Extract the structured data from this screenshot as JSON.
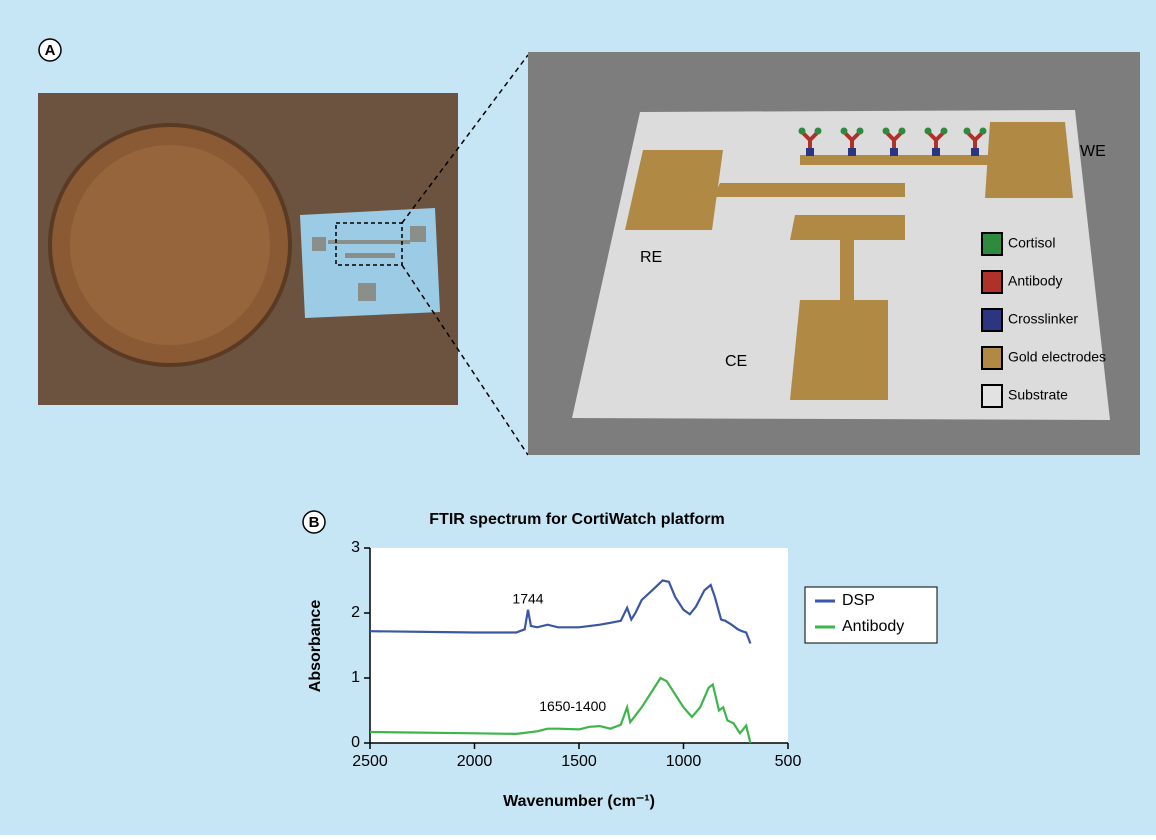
{
  "panels": {
    "a": "A",
    "b": "B"
  },
  "schematic": {
    "we": "WE",
    "re": "RE",
    "ce": "CE",
    "legend": [
      {
        "label": "Cortisol",
        "color": "#2e8b3e"
      },
      {
        "label": "Antibody",
        "color": "#b0302a"
      },
      {
        "label": "Crosslinker",
        "color": "#2b3580"
      },
      {
        "label": "Gold electrodes",
        "color": "#b08a45"
      },
      {
        "label": "Substrate",
        "color": "#e2e2e2"
      }
    ]
  },
  "chart_data": {
    "type": "line",
    "title": "FTIR spectrum for CortiWatch platform",
    "x_label": "Wavenumber (cm⁻¹)",
    "y_label": "Absorbance",
    "xlim": [
      2500,
      500
    ],
    "xticks": [
      2500,
      2000,
      1500,
      1000,
      500
    ],
    "ylim": [
      0,
      3
    ],
    "yticks": [
      0,
      1,
      2,
      3
    ],
    "annotations": [
      {
        "text": "1744",
        "x": 1744,
        "y": 2.2
      },
      {
        "text": "1650-1400",
        "x": 1530,
        "y": 0.55
      }
    ],
    "series": [
      {
        "name": "DSP",
        "color": "#3a56a5",
        "x": [
          2500,
          2000,
          1800,
          1760,
          1744,
          1730,
          1700,
          1650,
          1600,
          1500,
          1400,
          1350,
          1300,
          1270,
          1250,
          1230,
          1200,
          1150,
          1100,
          1070,
          1040,
          1000,
          970,
          940,
          900,
          870,
          850,
          820,
          800,
          770,
          740,
          720,
          700,
          680
        ],
        "values": [
          1.72,
          1.7,
          1.7,
          1.75,
          2.05,
          1.8,
          1.78,
          1.82,
          1.78,
          1.78,
          1.82,
          1.85,
          1.88,
          2.08,
          1.9,
          2.0,
          2.2,
          2.35,
          2.5,
          2.48,
          2.25,
          2.05,
          1.98,
          2.1,
          2.35,
          2.43,
          2.25,
          1.9,
          1.88,
          1.82,
          1.75,
          1.72,
          1.7,
          1.53
        ]
      },
      {
        "name": "Antibody",
        "color": "#3cb54a",
        "x": [
          2500,
          2000,
          1800,
          1700,
          1650,
          1600,
          1500,
          1450,
          1400,
          1350,
          1300,
          1270,
          1255,
          1200,
          1150,
          1110,
          1080,
          1040,
          1000,
          960,
          920,
          880,
          860,
          830,
          810,
          790,
          760,
          730,
          700,
          680
        ],
        "values": [
          0.17,
          0.15,
          0.14,
          0.18,
          0.22,
          0.22,
          0.21,
          0.25,
          0.26,
          0.22,
          0.28,
          0.55,
          0.32,
          0.55,
          0.8,
          1.0,
          0.95,
          0.75,
          0.55,
          0.4,
          0.55,
          0.85,
          0.9,
          0.5,
          0.55,
          0.35,
          0.3,
          0.15,
          0.27,
          0
        ]
      }
    ]
  }
}
